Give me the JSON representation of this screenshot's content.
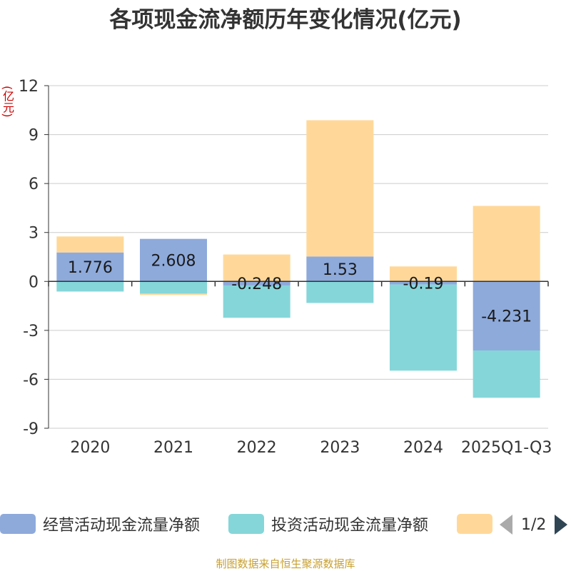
{
  "title": "各项现金流净额历年变化情况(亿元)",
  "unit_label": "(亿元)",
  "source_text": "制图数据来自恒生聚源数据库",
  "legend": {
    "items": [
      {
        "label": "经营活动现金流量净额",
        "color": "#8eaadb"
      },
      {
        "label": "投资活动现金流量净额",
        "color": "#85d6d9"
      },
      {
        "label": "",
        "color": "#ffd899"
      }
    ],
    "page_text": "1/2"
  },
  "chart_data": {
    "type": "bar",
    "stacked": true,
    "categories": [
      "2020",
      "2021",
      "2022",
      "2023",
      "2024",
      "2025Q1-Q3"
    ],
    "series": [
      {
        "name": "经营活动现金流量净额",
        "color": "#8eaadb",
        "values": [
          1.776,
          2.608,
          -0.248,
          1.53,
          -0.19,
          -4.231
        ],
        "labels": [
          "1.776",
          "2.608",
          "-0.248",
          "1.53",
          "-0.19",
          "-4.231"
        ]
      },
      {
        "name": "投资活动现金流量净额",
        "color": "#85d6d9",
        "values": [
          -0.62,
          -0.75,
          -1.98,
          -1.32,
          -5.28,
          -2.9
        ]
      },
      {
        "name": "",
        "color": "#ffd899",
        "values": [
          0.98,
          -0.08,
          1.65,
          8.35,
          0.92,
          4.63
        ]
      }
    ],
    "y_ticks": [
      12,
      9,
      6,
      3,
      0,
      -3,
      -6,
      -9
    ],
    "ylim": [
      -9,
      12
    ],
    "grid": true
  }
}
